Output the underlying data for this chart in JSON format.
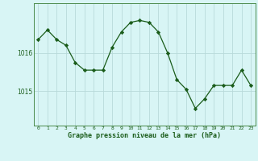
{
  "x": [
    0,
    1,
    2,
    3,
    4,
    5,
    6,
    7,
    8,
    9,
    10,
    11,
    12,
    13,
    14,
    15,
    16,
    17,
    18,
    19,
    20,
    21,
    22,
    23
  ],
  "y": [
    1016.35,
    1016.6,
    1016.35,
    1016.2,
    1015.75,
    1015.55,
    1015.55,
    1015.55,
    1016.15,
    1016.55,
    1016.8,
    1016.85,
    1016.8,
    1016.55,
    1016.0,
    1015.3,
    1015.05,
    1014.55,
    1014.8,
    1015.15,
    1015.15,
    1015.15,
    1015.55,
    1015.15
  ],
  "line_color": "#1a5c1a",
  "marker": "D",
  "marker_size": 2.2,
  "bg_color": "#d8f5f5",
  "grid_color": "#b8dada",
  "border_color": "#4a8a4a",
  "xlabel": "Graphe pression niveau de la mer (hPa)",
  "xlabel_color": "#1a5c1a",
  "yticks": [
    1015,
    1016
  ],
  "ylim": [
    1014.1,
    1017.3
  ],
  "xlim": [
    -0.5,
    23.5
  ],
  "xtick_labels": [
    "0",
    "1",
    "2",
    "3",
    "4",
    "5",
    "6",
    "7",
    "8",
    "9",
    "10",
    "11",
    "12",
    "13",
    "14",
    "15",
    "16",
    "17",
    "18",
    "19",
    "20",
    "21",
    "22",
    "23"
  ]
}
